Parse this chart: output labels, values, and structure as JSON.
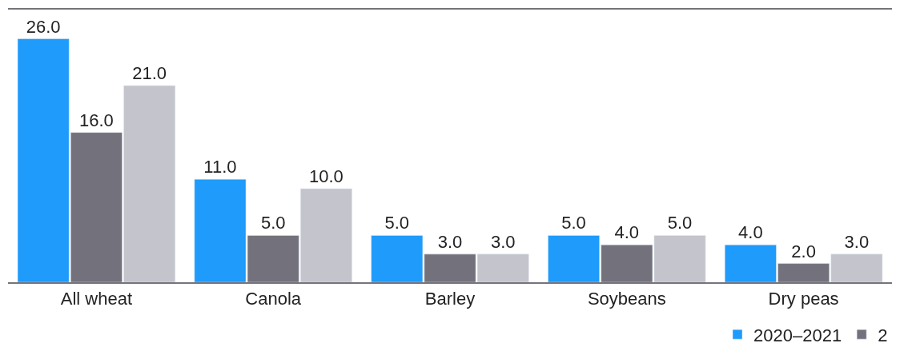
{
  "chart_data": {
    "type": "bar",
    "categories": [
      "All wheat",
      "Canola",
      "Barley",
      "Soybeans",
      "Dry peas"
    ],
    "series": [
      {
        "name": "2020–2021",
        "color": "#1e9bfb",
        "values": [
          26.0,
          11.0,
          5.0,
          5.0,
          4.0
        ],
        "value_labels": [
          "26.0",
          "11.0",
          "5.0",
          "5.0",
          "4.0"
        ]
      },
      {
        "name": "2",
        "color": "#73727c",
        "values": [
          16.0,
          5.0,
          3.0,
          4.0,
          2.0
        ],
        "value_labels": [
          "16.0",
          "5.0",
          "3.0",
          "4.0",
          "2.0"
        ]
      },
      {
        "color": "#c4c4cc",
        "values": [
          21.0,
          10.0,
          3.0,
          5.0,
          3.0
        ],
        "value_labels": [
          "21.0",
          "10.0",
          "3.0",
          "5.0",
          "3.0"
        ]
      }
    ],
    "legend": "bottom right"
  }
}
